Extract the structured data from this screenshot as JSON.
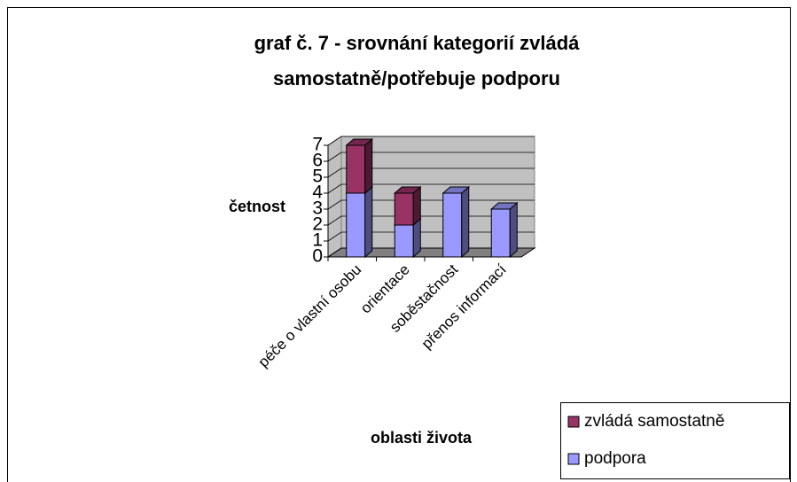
{
  "chart_data": {
    "type": "bar3d_stacked",
    "title": [
      "graf č. 7 - srovnání kategorií zvládá",
      "samostatně/potřebuje podporu"
    ],
    "y_axis_label": "četnost",
    "x_axis_label": "oblasti života",
    "categories": [
      "péče o vlastní osobu",
      "orientace",
      "soběstačnost",
      "přenos informací"
    ],
    "series": [
      {
        "name": "podpora",
        "color": "#9999ff",
        "values": [
          4,
          2,
          4,
          3
        ]
      },
      {
        "name": "zvládá samostatně",
        "color": "#993366",
        "values": [
          3,
          2,
          0,
          0
        ]
      }
    ],
    "ylim": [
      0,
      7
    ],
    "yticks": [
      0,
      1,
      2,
      3,
      4,
      5,
      6,
      7
    ],
    "grid": true
  }
}
